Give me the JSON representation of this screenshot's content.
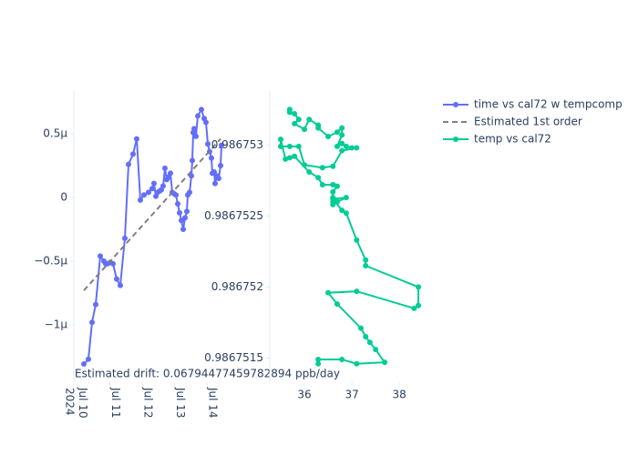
{
  "chart_data": [
    {
      "type": "line",
      "x": [
        "2024-07-10T04:44",
        "2024-07-10T08:07",
        "2024-07-10T10:49",
        "2024-07-10T13:31",
        "2024-07-10T16:54",
        "2024-07-10T19:36",
        "2024-07-10T20:57",
        "2024-07-10T22:18",
        "2024-07-11T00:20",
        "2024-07-11T02:22",
        "2024-07-11T05:04",
        "2024-07-11T07:46",
        "2024-07-11T11:09",
        "2024-07-11T13:51",
        "2024-07-11T17:14",
        "2024-07-11T19:56",
        "2024-07-11T22:38",
        "2024-07-12T01:21",
        "2024-07-12T04:43",
        "2024-07-12T07:25",
        "2024-07-12T08:46",
        "2024-07-12T10:08",
        "2024-07-12T11:29",
        "2024-07-12T12:50",
        "2024-07-12T14:11",
        "2024-07-12T15:32",
        "2024-07-12T16:53",
        "2024-07-12T18:15",
        "2024-07-12T19:36",
        "2024-07-12T20:57",
        "2024-07-12T22:18",
        "2024-07-12T23:39",
        "2024-07-13T01:01",
        "2024-07-13T02:22",
        "2024-07-13T03:43",
        "2024-07-13T05:04",
        "2024-07-13T06:25",
        "2024-07-13T07:46",
        "2024-07-13T09:07",
        "2024-07-13T09:48",
        "2024-07-13T11:09",
        "2024-07-13T12:30",
        "2024-07-13T13:11",
        "2024-07-13T13:51",
        "2024-07-13T14:32",
        "2024-07-13T15:53",
        "2024-07-13T17:14",
        "2024-07-13T19:56",
        "2024-07-13T21:58",
        "2024-07-13T23:19",
        "2024-07-14T00:40",
        "2024-07-14T02:01",
        "2024-07-14T03:22",
        "2024-07-14T04:03",
        "2024-07-14T05:24",
        "2024-07-14T06:04",
        "2024-07-14T07:25",
        "2024-07-14T08:46",
        "2024-07-14T10:08",
        "2024-07-14T10:49"
      ],
      "series": [
        {
          "name": "time vs cal72 w tempcomp",
          "color": "#636efa",
          "mode": "lines+markers",
          "values": [
            -1.307e-06,
            -1.27e-06,
            -9.8e-07,
            -8.4e-07,
            -4.6e-07,
            -5e-07,
            -5.2e-07,
            -5.2e-07,
            -5.1e-07,
            -5.2e-07,
            -6.4e-07,
            -6.9e-07,
            -3.2e-07,
            2.6e-07,
            3.4e-07,
            4.6e-07,
            -2e-08,
            2e-08,
            4e-08,
            7e-08,
            1.1e-07,
            1e-08,
            4e-08,
            5e-08,
            6e-08,
            9e-08,
            2.3e-07,
            1.4e-07,
            1.6e-07,
            1.9e-07,
            4e-08,
            3e-08,
            2e-08,
            -5e-08,
            -1.2e-07,
            -1.8e-07,
            -2.5e-07,
            -1.6e-07,
            -1.1e-07,
            2e-08,
            4e-08,
            1.7e-07,
            2.9e-07,
            5.1e-07,
            5.4e-07,
            4.8e-07,
            6.4e-07,
            6.9e-07,
            6.2e-07,
            5.9e-07,
            4.2e-07,
            3.6e-07,
            3.1e-07,
            1.9e-07,
            2e-07,
            1.1e-07,
            1.7e-07,
            1.5e-07,
            2.5e-07,
            4.1e-07
          ]
        },
        {
          "name": "Estimated 1st order",
          "color": "#808080",
          "mode": "dash",
          "x": [
            "2024-07-10T04:44",
            "2024-07-14T10:08"
          ],
          "values": [
            -7.3e-07,
            4.6e-07
          ]
        }
      ],
      "xlim": [
        "2024-07-09T21:18",
        "2024-07-14T19:36"
      ],
      "xticks": [
        {
          "value": "2024-07-10",
          "label": "Jul 10\n2024"
        },
        {
          "value": "2024-07-11",
          "label": "Jul 11"
        },
        {
          "value": "2024-07-12",
          "label": "Jul 12"
        },
        {
          "value": "2024-07-13",
          "label": "Jul 13"
        },
        {
          "value": "2024-07-14",
          "label": "Jul 14"
        }
      ],
      "ylim": [
        -1.45e-06,
        8.36e-07
      ],
      "yticks": [
        {
          "value": 5e-07,
          "label": "0.5μ"
        },
        0,
        {
          "value": -5e-07,
          "label": "−0.5μ"
        },
        {
          "value": -1e-06,
          "label": "−1μ"
        }
      ],
      "annotation": "Estimated drift:  0.06794477459782894 ppb/day",
      "legend": "right"
    },
    {
      "type": "line",
      "series": [
        {
          "name": "temp vs cal72",
          "color": "#00cc96",
          "mode": "lines+markers",
          "x": [
            35.69,
            35.69,
            35.79,
            35.88,
            35.79,
            36.0,
            36.1,
            36.29,
            36.29,
            36.5,
            36.69,
            36.79,
            36.79,
            36.69,
            36.79,
            36.88,
            37.0,
            37.1,
            36.79,
            36.6,
            36.38,
            36.0,
            35.88,
            35.69,
            35.5,
            35.5,
            35.6,
            35.69,
            35.79,
            36.1,
            36.29,
            36.38,
            36.6,
            36.69,
            36.6,
            36.6,
            36.6,
            36.6,
            36.69,
            36.88,
            36.6,
            36.79,
            36.88,
            37.1,
            37.29,
            37.29,
            38.4,
            38.4,
            38.31,
            37.1,
            36.5,
            36.69,
            37.19,
            37.29,
            37.38,
            37.5,
            37.69,
            37.1,
            36.79,
            36.29,
            36.29
          ],
          "values": [
            0.98675325,
            0.98675323,
            0.98675322,
            0.98675318,
            0.98675315,
            0.98675311,
            0.98675318,
            0.98675314,
            0.98675312,
            0.98675306,
            0.98675309,
            0.98675312,
            0.98675307,
            0.98675299,
            0.98675301,
            0.98675299,
            0.98675298,
            0.98675298,
            0.98675296,
            0.98675285,
            0.98675284,
            0.98675286,
            0.98675299,
            0.98675299,
            0.98675299,
            0.98675304,
            0.9867529,
            0.98675291,
            0.98675292,
            0.98675281,
            0.98675277,
            0.98675272,
            0.98675272,
            0.98675271,
            0.98675267,
            0.98675263,
            0.9867526,
            0.98675258,
            0.9867526,
            0.98675263,
            0.98675262,
            0.98675254,
            0.98675252,
            0.98675233,
            0.98675219,
            0.98675215,
            0.986752,
            0.98675187,
            0.98675185,
            0.98675197,
            0.98675196,
            0.98675188,
            0.98675171,
            0.98675165,
            0.98675161,
            0.98675156,
            0.98675147,
            0.98675146,
            0.98675149,
            0.98675149,
            0.98675146
          ]
        }
      ],
      "xlim": [
        35.27,
        38.63
      ],
      "xticks": [
        36,
        37,
        38
      ],
      "ylim": [
        0.98675133,
        0.98675338
      ],
      "yticks": [
        0.986753,
        0.9867525,
        0.986752,
        0.9867515
      ]
    }
  ]
}
